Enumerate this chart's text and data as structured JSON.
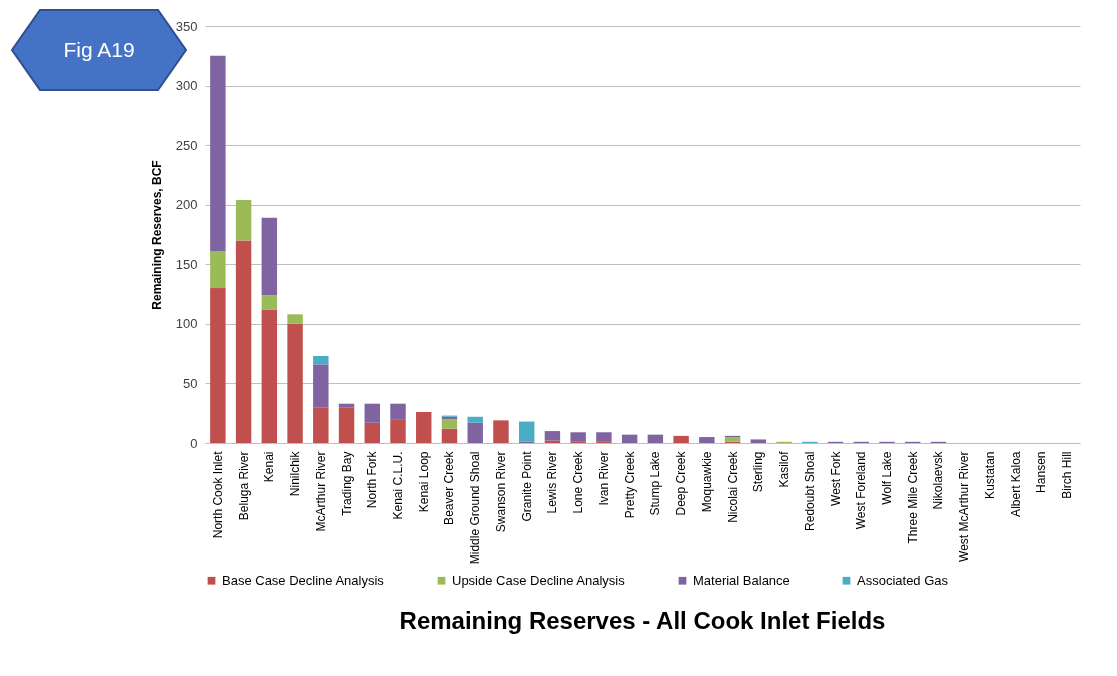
{
  "chart_data": {
    "type": "bar",
    "stacked": true,
    "title": "Remaining Reserves - All Cook Inlet Fields",
    "ylabel": "Remaining Reserves, BCF",
    "annotations": [
      "Fig A19"
    ],
    "categories": [
      "North Cook Inlet",
      "Beluga River",
      "Kenai",
      "Ninilchik",
      "McArthur River",
      "Trading Bay",
      "North Fork",
      "Kenai C.L.U.",
      "Kenai Loop",
      "Beaver Creek",
      "Middle Ground Shoal",
      "Swanson River",
      "Granite Point",
      "Lewis River",
      "Lone Creek",
      "Ivan River",
      "Pretty Creek",
      "Stump Lake",
      "Deep Creek",
      "Moquawkie",
      "Nicolai Creek",
      "Sterling",
      "Kasilof",
      "Redoubt Shoal",
      "West Fork",
      "West Foreland",
      "Wolf Lake",
      "Three Mile Creek",
      "Nikolaevsk",
      "West McArthur River",
      "Kustatan",
      "Albert Kaloa",
      "Hansen",
      "Birch Hill"
    ],
    "series": [
      {
        "name": "Base Case Decline Analysis",
        "color": "#c0504d",
        "values": [
          130,
          170,
          112,
          100,
          30,
          30,
          17,
          20,
          26,
          12,
          0,
          19,
          0,
          2,
          1,
          1,
          0,
          0,
          6,
          0,
          1,
          0,
          0,
          0,
          0,
          0,
          0,
          0,
          0,
          0,
          0,
          0,
          0,
          0
        ]
      },
      {
        "name": "Upside Case Decline Analysis",
        "color": "#9bbb59",
        "values": [
          31,
          34,
          12,
          8,
          0,
          0,
          0,
          0,
          0,
          8,
          0,
          0,
          0,
          0,
          0,
          0,
          0,
          0,
          0,
          0,
          4,
          0,
          1,
          0,
          0,
          0,
          0,
          0,
          0,
          0,
          0,
          0,
          0,
          0
        ]
      },
      {
        "name": "Material Balance",
        "color": "#8064a2",
        "values": [
          164,
          0,
          65,
          0,
          36,
          3,
          16,
          13,
          0,
          2,
          17,
          0,
          1,
          8,
          8,
          8,
          7,
          7,
          0,
          5,
          1,
          3,
          0,
          0,
          1,
          1,
          1,
          1,
          1,
          0,
          0,
          0,
          0,
          0
        ]
      },
      {
        "name": "Associated Gas",
        "color": "#4bacc6",
        "values": [
          0,
          0,
          0,
          0,
          7,
          0,
          0,
          0,
          0,
          1,
          5,
          0,
          17,
          0,
          0,
          0,
          0,
          0,
          0,
          0,
          0,
          0,
          0,
          1,
          0,
          0,
          0,
          0,
          0,
          0,
          0,
          0,
          0,
          0
        ]
      }
    ],
    "ylim": [
      0,
      350
    ],
    "yticks": [
      0,
      50,
      100,
      150,
      200,
      250,
      300,
      350
    ],
    "grid": "y",
    "legend": "bottom"
  }
}
